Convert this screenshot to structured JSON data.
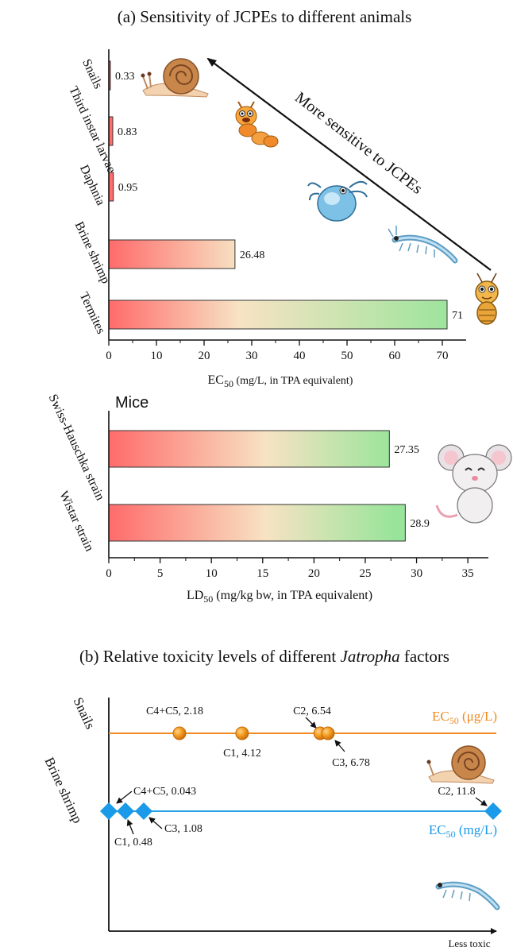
{
  "chart_data": [
    {
      "type": "bar",
      "orientation": "horizontal",
      "title": "(a) Sensitivity of JCPEs to different animals",
      "xlabel": "EC",
      "xlabel_sub": "50",
      "xlabel_rest": " (mg/L, in TPA equivalent)",
      "xlim": [
        0,
        75
      ],
      "xticks": [
        0,
        10,
        20,
        30,
        40,
        50,
        60,
        70
      ],
      "categories": [
        "Snails",
        "Third instar larvae",
        "Daphnia",
        "Brine shrimp",
        "Termites"
      ],
      "values": [
        0.33,
        0.83,
        0.95,
        26.48,
        71
      ],
      "value_labels": [
        "0.33",
        "0.83",
        "0.95",
        "26.48",
        "71"
      ],
      "annotation": "More sensitive to JCPEs",
      "colors": {
        "start": "#ff6b6b",
        "mid": "#f7e3c3",
        "end": "#98e49a",
        "arrow": "#111111"
      }
    },
    {
      "type": "bar",
      "orientation": "horizontal",
      "panel_label": "Mice",
      "xlabel": "LD",
      "xlabel_sub": "50",
      "xlabel_rest": " (mg/kg bw, in TPA equivalent)",
      "xlim": [
        0,
        37
      ],
      "xticks": [
        0,
        5,
        10,
        15,
        20,
        25,
        30,
        35
      ],
      "categories": [
        "Swiss-Hauschka strain",
        "Wistar strain"
      ],
      "values": [
        27.35,
        28.9
      ],
      "value_labels": [
        "27.35",
        "28.9"
      ]
    },
    {
      "type": "scatter",
      "title_prefix": "(b) Relative toxicity levels of different ",
      "title_italic": "Jatropha",
      "title_suffix": " factors",
      "xlabel": "Less toxic",
      "series": [
        {
          "name": "Snails",
          "unit_label": "EC",
          "unit_sub": "50",
          "unit_rest": " (μg/L)",
          "color": "#f39c1f",
          "line_color": "#f08a22",
          "points": [
            {
              "label": "C4+C5, 2.18",
              "x": 2.18
            },
            {
              "label": "C1, 4.12",
              "x": 4.12
            },
            {
              "label": "C2, 6.54",
              "x": 6.54
            },
            {
              "label": "C3, 6.78",
              "x": 6.78
            }
          ]
        },
        {
          "name": "Brine shrimp",
          "unit_label": "EC",
          "unit_sub": "50",
          "unit_rest": " (mg/L)",
          "color": "#1a9ae8",
          "line_color": "#2aa3e8",
          "points": [
            {
              "label": "C4+C5, 0.043",
              "x": 0.043
            },
            {
              "label": "C1, 0.48",
              "x": 0.48
            },
            {
              "label": "C3, 1.08",
              "x": 1.08
            },
            {
              "label": "C2, 11.8",
              "x": 11.8
            }
          ]
        }
      ]
    }
  ]
}
